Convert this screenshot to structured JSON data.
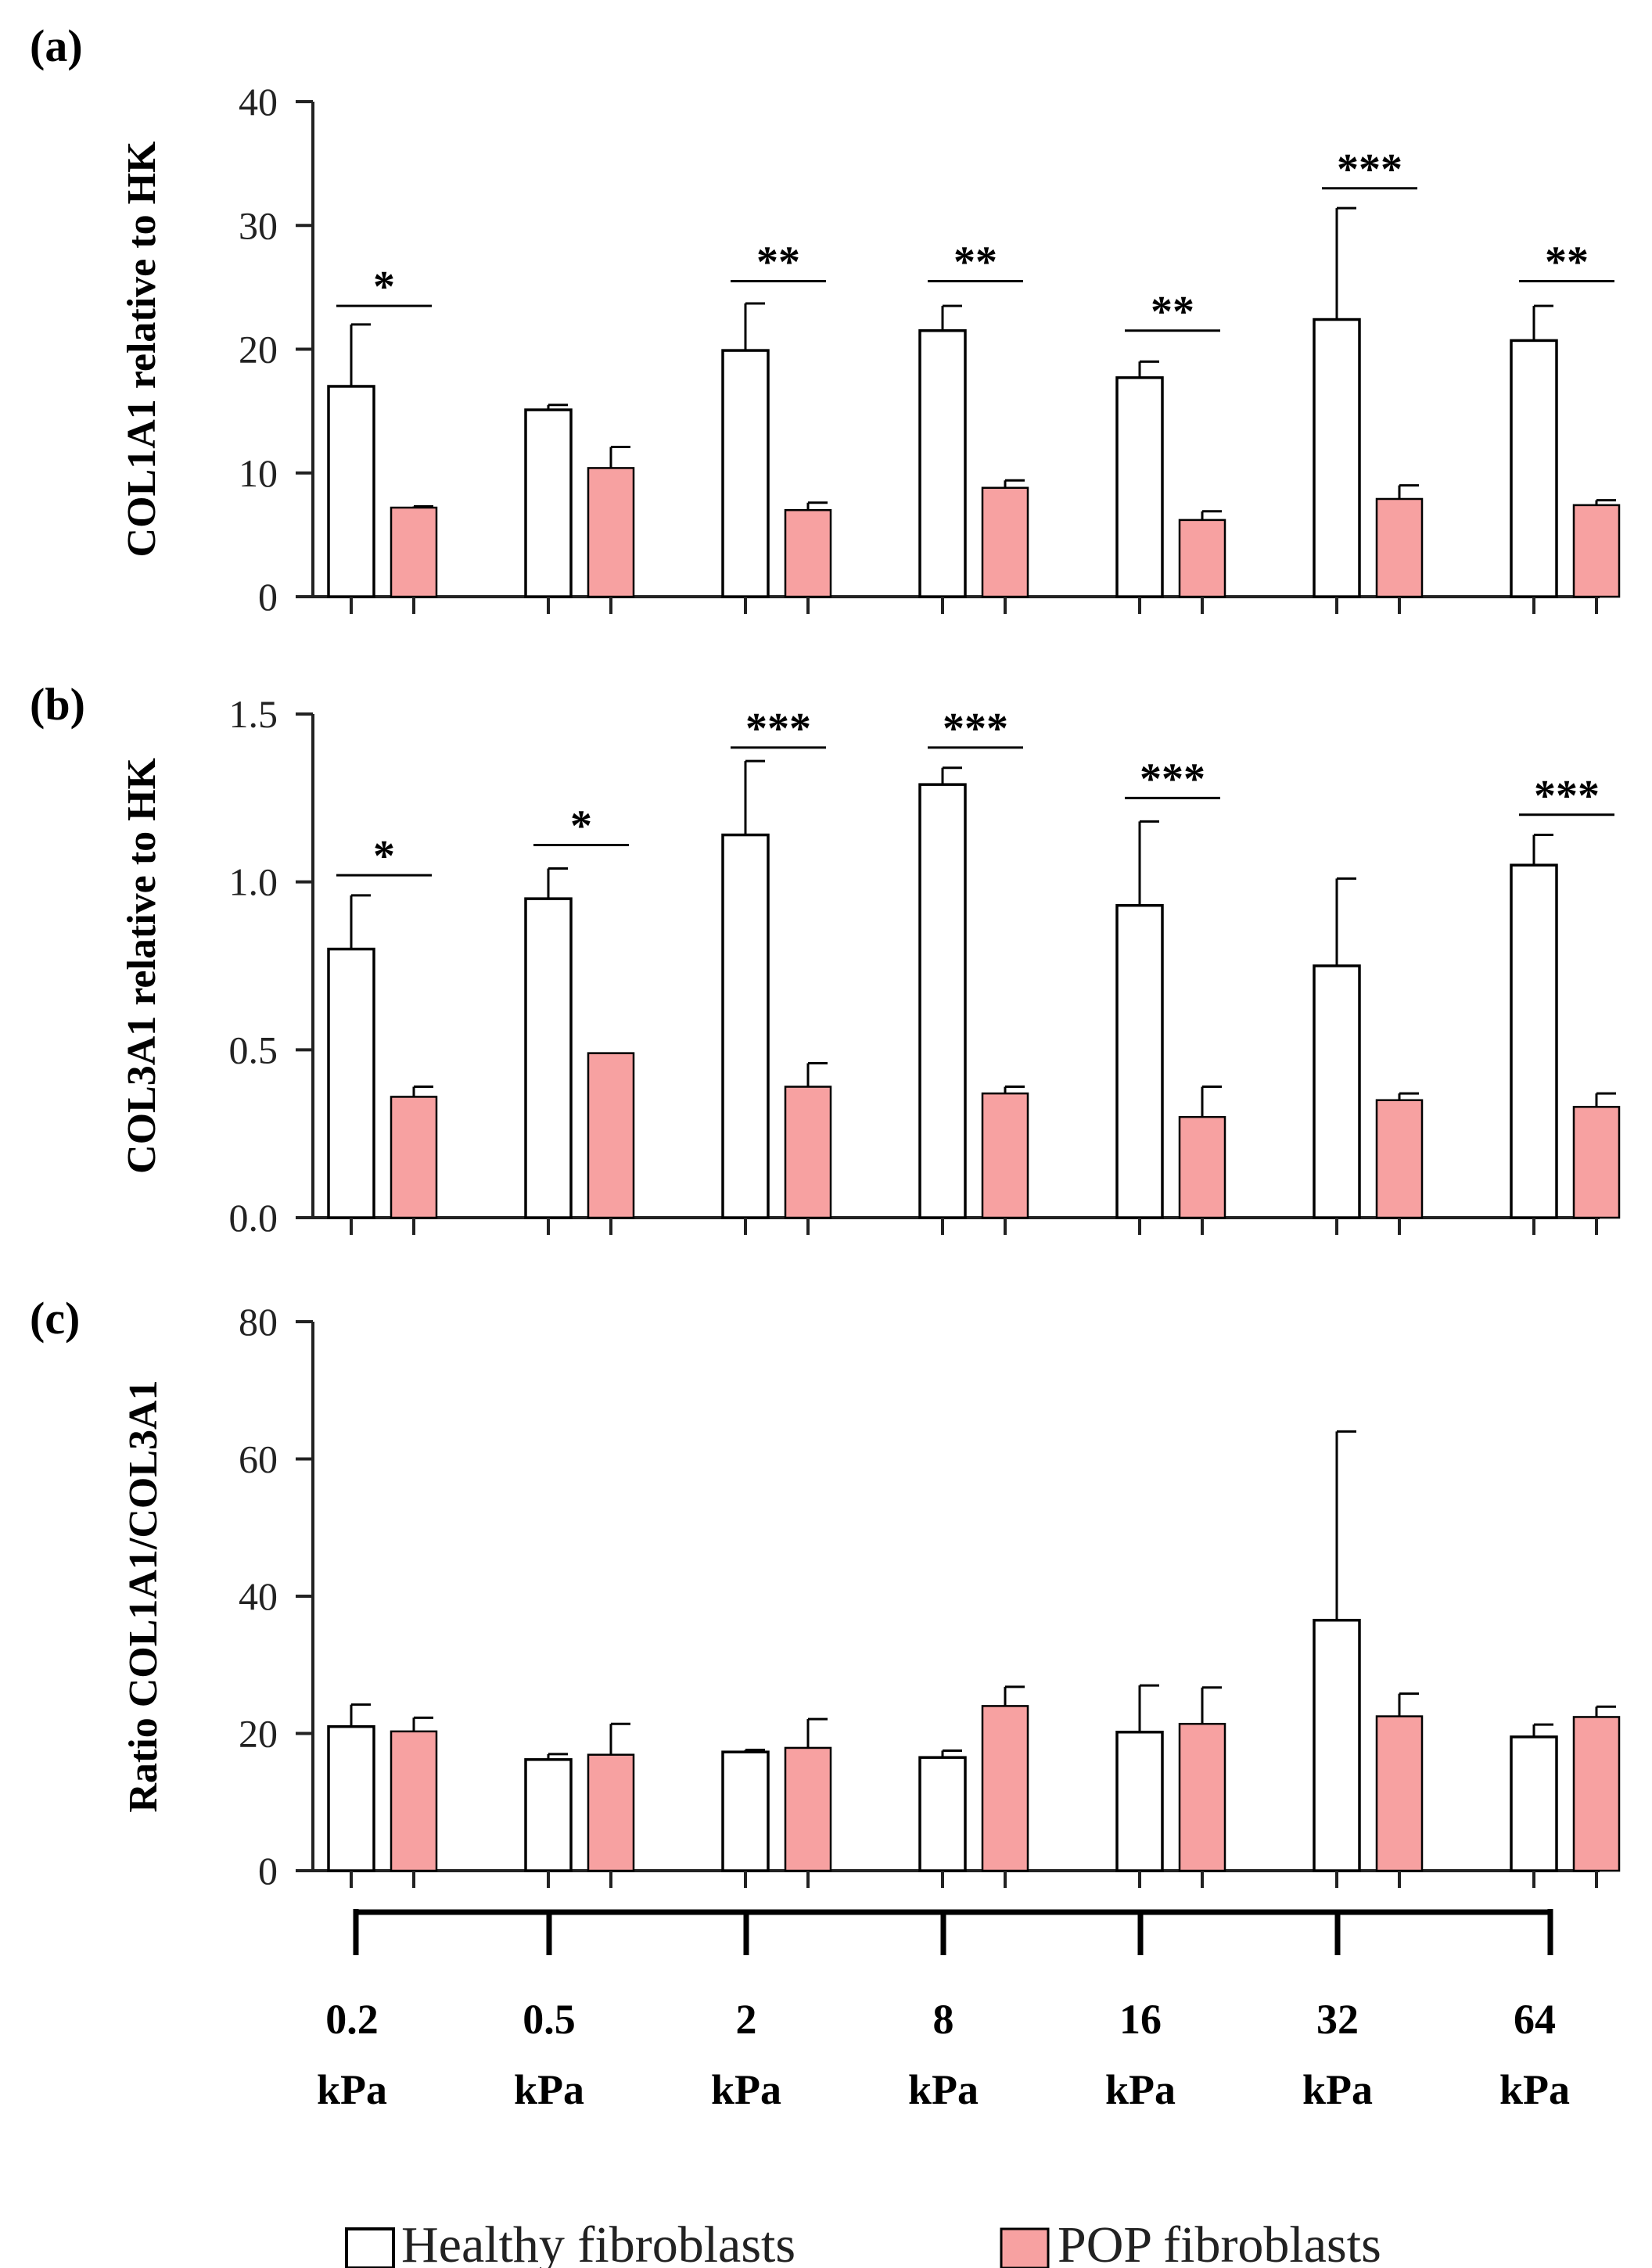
{
  "chart_data": [
    {
      "type": "bar",
      "panel": "(a)",
      "ylabel": "COL1A1 relative to HK",
      "ylim": [
        0,
        40
      ],
      "yticks": [
        0,
        10,
        20,
        30,
        40
      ],
      "categories": [
        "0.2 kPa",
        "0.5 kPa",
        "2 kPa",
        "8 kPa",
        "16 kPa",
        "32 kPa",
        "64 kPa"
      ],
      "series": [
        {
          "name": "Healthy fibroblasts",
          "values": [
            17.0,
            15.1,
            19.9,
            21.5,
            17.7,
            22.4,
            20.7
          ],
          "errors": [
            5.0,
            0.4,
            3.8,
            2.0,
            1.3,
            9.0,
            2.8
          ]
        },
        {
          "name": "POP fibroblasts",
          "values": [
            7.2,
            10.4,
            7.0,
            8.8,
            6.2,
            7.9,
            7.4
          ],
          "errors": [
            0.1,
            1.7,
            0.6,
            0.6,
            0.7,
            1.1,
            0.4
          ]
        }
      ],
      "significance": [
        {
          "category": 0,
          "label": "*",
          "y": 23.5
        },
        {
          "category": 2,
          "label": "**",
          "y": 25.5
        },
        {
          "category": 3,
          "label": "**",
          "y": 25.5
        },
        {
          "category": 4,
          "label": "**",
          "y": 21.5
        },
        {
          "category": 5,
          "label": "***",
          "y": 33.0
        },
        {
          "category": 6,
          "label": "**",
          "y": 25.5
        }
      ]
    },
    {
      "type": "bar",
      "panel": "(b)",
      "ylabel": "COL3A1 relative to HK",
      "ylim": [
        0,
        1.5
      ],
      "yticks": [
        0.0,
        0.5,
        1.0,
        1.5
      ],
      "ytick_labels": [
        "0.0",
        "0.5",
        "1.0",
        "1.5"
      ],
      "categories": [
        "0.2 kPa",
        "0.5 kPa",
        "2 kPa",
        "8 kPa",
        "16 kPa",
        "32 kPa",
        "64 kPa"
      ],
      "series": [
        {
          "name": "Healthy fibroblasts",
          "values": [
            0.8,
            0.95,
            1.14,
            1.29,
            0.93,
            0.75,
            1.05
          ],
          "errors": [
            0.16,
            0.09,
            0.22,
            0.05,
            0.25,
            0.26,
            0.09
          ]
        },
        {
          "name": "POP fibroblasts",
          "values": [
            0.36,
            0.49,
            0.39,
            0.37,
            0.3,
            0.35,
            0.33
          ],
          "errors": [
            0.03,
            0.0,
            0.07,
            0.02,
            0.09,
            0.02,
            0.04
          ]
        }
      ],
      "significance": [
        {
          "category": 0,
          "label": "*",
          "y": 1.02
        },
        {
          "category": 1,
          "label": "*",
          "y": 1.11
        },
        {
          "category": 2,
          "label": "***",
          "y": 1.4
        },
        {
          "category": 3,
          "label": "***",
          "y": 1.4
        },
        {
          "category": 4,
          "label": "***",
          "y": 1.25
        },
        {
          "category": 6,
          "label": "***",
          "y": 1.2
        }
      ]
    },
    {
      "type": "bar",
      "panel": "(c)",
      "ylabel": "Ratio COL1A1/COL3A1",
      "ylim": [
        0,
        80
      ],
      "yticks": [
        0,
        20,
        40,
        60,
        80
      ],
      "categories": [
        "0.2 kPa",
        "0.5 kPa",
        "2 kPa",
        "8 kPa",
        "16 kPa",
        "32 kPa",
        "64 kPa"
      ],
      "series": [
        {
          "name": "Healthy fibroblasts",
          "values": [
            21.0,
            16.2,
            17.3,
            16.5,
            20.2,
            36.5,
            19.5
          ],
          "errors": [
            3.2,
            0.8,
            0.3,
            1.0,
            6.8,
            27.5,
            1.8
          ]
        },
        {
          "name": "POP fibroblasts",
          "values": [
            20.3,
            16.9,
            17.9,
            24.0,
            21.4,
            22.5,
            22.4
          ],
          "errors": [
            2.0,
            4.5,
            4.2,
            2.8,
            5.3,
            3.3,
            1.5
          ]
        }
      ],
      "significance": []
    }
  ],
  "x_axis": {
    "categories": [
      {
        "value": "0.2",
        "unit": "kPa"
      },
      {
        "value": "0.5",
        "unit": "kPa"
      },
      {
        "value": "2",
        "unit": "kPa"
      },
      {
        "value": "8",
        "unit": "kPa"
      },
      {
        "value": "16",
        "unit": "kPa"
      },
      {
        "value": "32",
        "unit": "kPa"
      },
      {
        "value": "64",
        "unit": "kPa"
      }
    ]
  },
  "legend": {
    "items": [
      {
        "label": "Healthy fibroblasts",
        "fill": "#ffffff"
      },
      {
        "label": "POP fibroblasts",
        "fill": "#f7a1a1"
      }
    ]
  },
  "colors": {
    "healthy_fill": "#ffffff",
    "pop_fill": "#f7a1a1",
    "stroke": "#000000",
    "axis": "#222222"
  }
}
